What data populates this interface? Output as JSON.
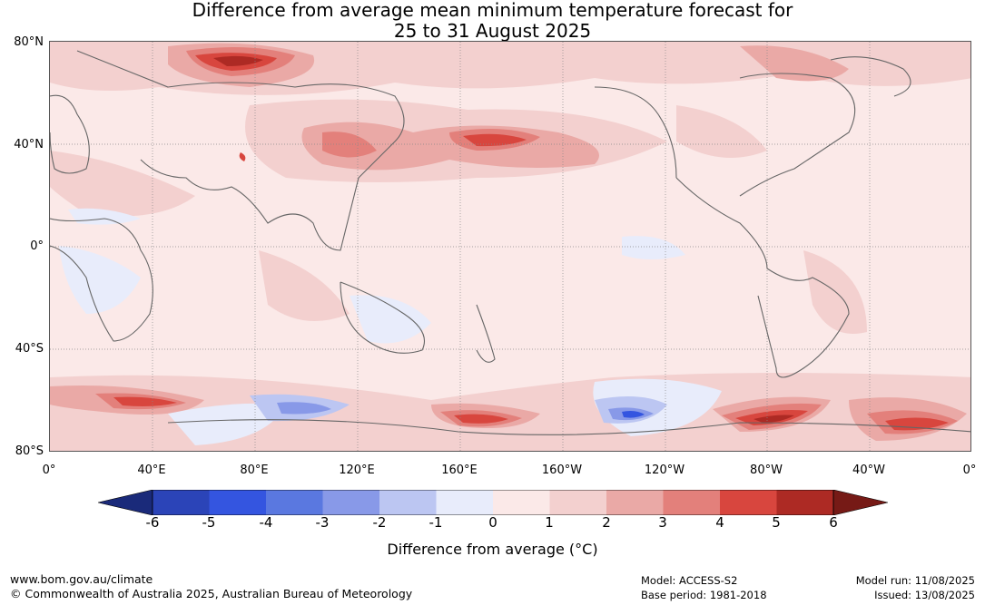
{
  "title_line1": "Difference from average mean minimum temperature forecast for",
  "title_line2": "25 to 31 August 2025",
  "lat_labels": [
    "80°N",
    "40°N",
    "0°",
    "40°S",
    "80°S"
  ],
  "lon_labels": [
    "0°",
    "40°E",
    "80°E",
    "120°E",
    "160°E",
    "160°W",
    "120°W",
    "80°W",
    "40°W",
    "0°"
  ],
  "colorbar": {
    "ticks": [
      "-6",
      "-5",
      "-4",
      "-3",
      "-2",
      "-1",
      "0",
      "1",
      "2",
      "3",
      "4",
      "5",
      "6"
    ],
    "label": "Difference from average (°C)",
    "colors": {
      "lt_-6": "#1a2a7a",
      "-6_-5": "#2b44b8",
      "-5_-4": "#3455e0",
      "-4_-3": "#5a78e0",
      "-3_-2": "#8899e8",
      "-2_-1": "#bcc6f2",
      "-1_0": "#e8ecfb",
      "0_1": "#fbe9e8",
      "1_2": "#f3d0cf",
      "2_3": "#eaa9a6",
      "3_4": "#e3807b",
      "4_5": "#d8463e",
      "5_6": "#ad2a24",
      "gt_6": "#761a16"
    }
  },
  "footer": {
    "url": "www.bom.gov.au/climate",
    "copyright": "© Commonwealth of Australia 2025, Australian Bureau of Meteorology",
    "model": "Model: ACCESS-S2",
    "base_period": "Base period: 1981-2018",
    "model_run": "Model run: 11/08/2025",
    "issued": "Issued: 13/08/2025"
  }
}
